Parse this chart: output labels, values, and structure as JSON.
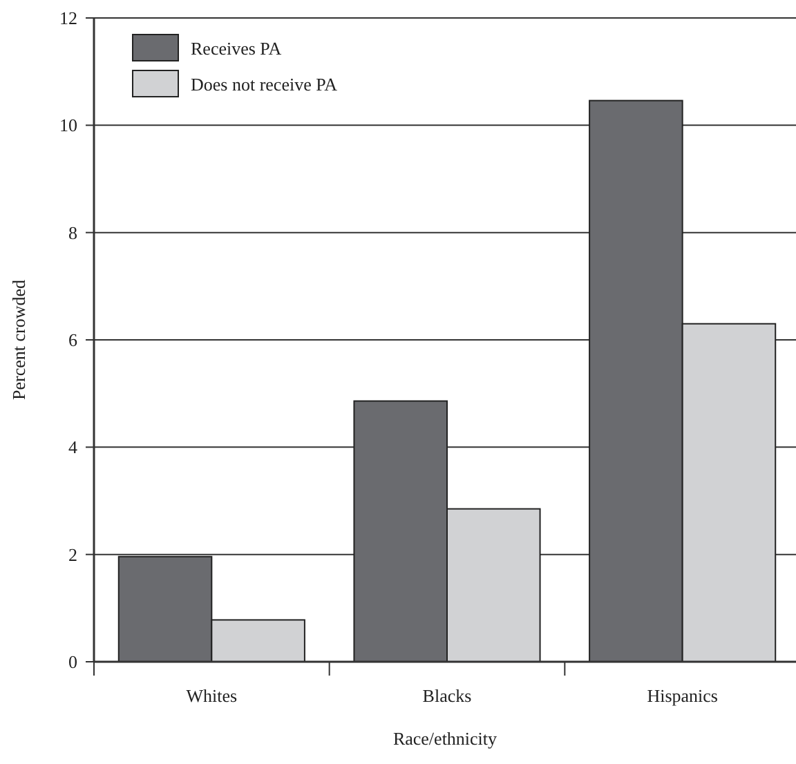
{
  "chart_data": {
    "type": "bar",
    "xlabel": "Race/ethnicity",
    "ylabel": "Percent crowded",
    "categories": [
      "Whites",
      "Blacks",
      "Hispanics"
    ],
    "series": [
      {
        "name": "Receives PA",
        "color": "#6a6b6f",
        "values": [
          1.96,
          4.86,
          10.46
        ]
      },
      {
        "name": "Does not receive PA",
        "color": "#d1d2d4",
        "values": [
          0.78,
          2.85,
          6.3
        ]
      }
    ],
    "ylim": [
      0,
      12
    ],
    "yticks": [
      0,
      2,
      4,
      6,
      8,
      10,
      12
    ],
    "grid": "y",
    "legend": "top left"
  }
}
